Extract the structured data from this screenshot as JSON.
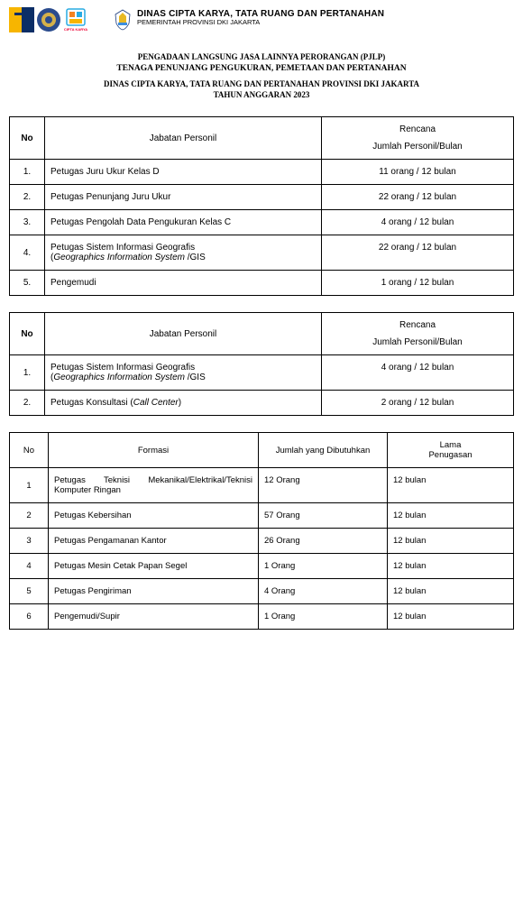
{
  "header": {
    "agency": "DINAS CIPTA KARYA, TATA RUANG DAN PERTANAHAN",
    "govt": "PEMERINTAH PROVINSI DKI JAKARTA"
  },
  "title": {
    "line1": "PENGADAAN LANGSUNG JASA LAINNYA PERORANGAN (PJLP)",
    "line2": "TENAGA PENUNJANG PENGUKURAN, PEMETAAN DAN PERTANAHAN",
    "line3": "DINAS CIPTA KARYA, TATA RUANG DAN PERTANAHAN PROVINSI DKI JAKARTA",
    "line4": "TAHUN ANGGARAN 2023"
  },
  "table_headers": {
    "no": "No",
    "jabatan": "Jabatan Personil",
    "rencana": "Rencana",
    "jumlah_bulan": "Jumlah Personil/Bulan",
    "formasi": "Formasi",
    "jumlah_dibutuhkan": "Jumlah yang Dibutuhkan",
    "lama_penugasan": "Lama Penugasan"
  },
  "table1": [
    {
      "no": "1.",
      "jabatan": "Petugas Juru Ukur Kelas D",
      "plan": "11 orang / 12 bulan"
    },
    {
      "no": "2.",
      "jabatan": "Petugas Penunjang Juru Ukur",
      "plan": "22 orang / 12 bulan"
    },
    {
      "no": "3.",
      "jabatan": "Petugas Pengolah Data Pengukuran Kelas C",
      "plan": "4 orang / 12 bulan"
    },
    {
      "no": "4.",
      "jabatan_pre": "Petugas Sistem Informasi Geografis (",
      "jabatan_ital": "Geographics Information System",
      "jabatan_post": " /GIS",
      "plan": "22 orang / 12 bulan"
    },
    {
      "no": "5.",
      "jabatan": "Pengemudi",
      "plan": "1 orang / 12 bulan"
    }
  ],
  "table2": [
    {
      "no": "1.",
      "jabatan_pre": "Petugas Sistem Informasi Geografis (",
      "jabatan_ital": "Geographics Information System",
      "jabatan_post": " /GIS",
      "plan": "4 orang / 12 bulan"
    },
    {
      "no": "2.",
      "jabatan_pre": "Petugas Konsultasi (",
      "jabatan_ital": "Call Center",
      "jabatan_post": ")",
      "plan": "2 orang / 12 bulan"
    }
  ],
  "table3": [
    {
      "no": "1",
      "formasi": "Petugas Teknisi Mekanikal/Elektrikal/Teknisi Komputer Ringan",
      "jumlah": "12 Orang",
      "lama": "12 bulan",
      "justify": true
    },
    {
      "no": "2",
      "formasi": "Petugas Kebersihan",
      "jumlah": "57 Orang",
      "lama": "12 bulan"
    },
    {
      "no": "3",
      "formasi": "Petugas Pengamanan Kantor",
      "jumlah": "26 Orang",
      "lama": "12 bulan"
    },
    {
      "no": "4",
      "formasi": "Petugas Mesin Cetak Papan Segel",
      "jumlah": "1 Orang",
      "lama": "12 bulan"
    },
    {
      "no": "5",
      "formasi": "Petugas Pengiriman",
      "jumlah": "4 Orang",
      "lama": "12 bulan"
    },
    {
      "no": "6",
      "formasi": "Pengemudi/Supir",
      "jumlah": "1 Orang",
      "lama": "12 bulan"
    }
  ],
  "colors": {
    "logo1_yellow": "#f7b500",
    "logo1_blue": "#0b2e66",
    "logo2": "#2a4b8d",
    "logo3_orange": "#f58220",
    "logo3_blue": "#29abe2"
  }
}
